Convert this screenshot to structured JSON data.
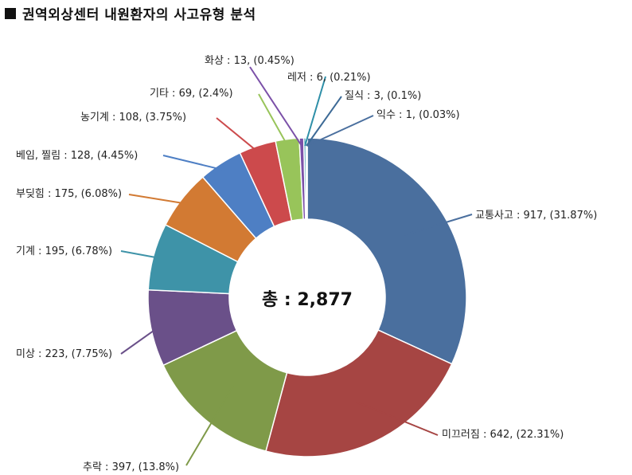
{
  "title": "권역외상센터 내원환자의 사고유형 분석",
  "chart_data": {
    "type": "pie",
    "variant": "donut",
    "center_label": "총 : 2,877",
    "total": 2877,
    "slices": [
      {
        "name": "교통사고",
        "value": 917,
        "percent": "31.87%",
        "label": "교통사고 : 917, (31.87%)",
        "color": "#4a6f9e"
      },
      {
        "name": "미끄러짐",
        "value": 642,
        "percent": "22.31%",
        "label": "미끄러짐 : 642, (22.31%)",
        "color": "#a64543"
      },
      {
        "name": "추락",
        "value": 397,
        "percent": "13.8%",
        "label": "추락 : 397, (13.8%)",
        "color": "#7f9a49"
      },
      {
        "name": "미상",
        "value": 223,
        "percent": "7.75%",
        "label": "미상 : 223, (7.75%)",
        "color": "#6a5089"
      },
      {
        "name": "기계",
        "value": 195,
        "percent": "6.78%",
        "label": "기계 : 195, (6.78%)",
        "color": "#3e93a8"
      },
      {
        "name": "부딪힘",
        "value": 175,
        "percent": "6.08%",
        "label": "부딪힘 : 175, (6.08%)",
        "color": "#d27a33"
      },
      {
        "name": "베임, 찔림",
        "value": 128,
        "percent": "4.45%",
        "label": "베임, 찔림 : 128, (4.45%)",
        "color": "#4e7fc4"
      },
      {
        "name": "농기계",
        "value": 108,
        "percent": "3.75%",
        "label": "농기계 : 108, (3.75%)",
        "color": "#cc4a4c"
      },
      {
        "name": "기타",
        "value": 69,
        "percent": "2.4%",
        "label": "기타 : 69, (2.4%)",
        "color": "#98c45a"
      },
      {
        "name": "화상",
        "value": 13,
        "percent": "0.45%",
        "label": "화상 : 13, (0.45%)",
        "color": "#7b50a8"
      },
      {
        "name": "레저",
        "value": 6,
        "percent": "0.21%",
        "label": "레저 : 6, (0.21%)",
        "color": "#2e8fa8"
      },
      {
        "name": "질식",
        "value": 3,
        "percent": "0.1%",
        "label": "질식 : 3, (0.1%)",
        "color": "#3d6a96"
      },
      {
        "name": "익수",
        "value": 1,
        "percent": "0.03%",
        "label": "익수 : 1, (0.03%)",
        "color": "#4a6f9e"
      }
    ]
  }
}
